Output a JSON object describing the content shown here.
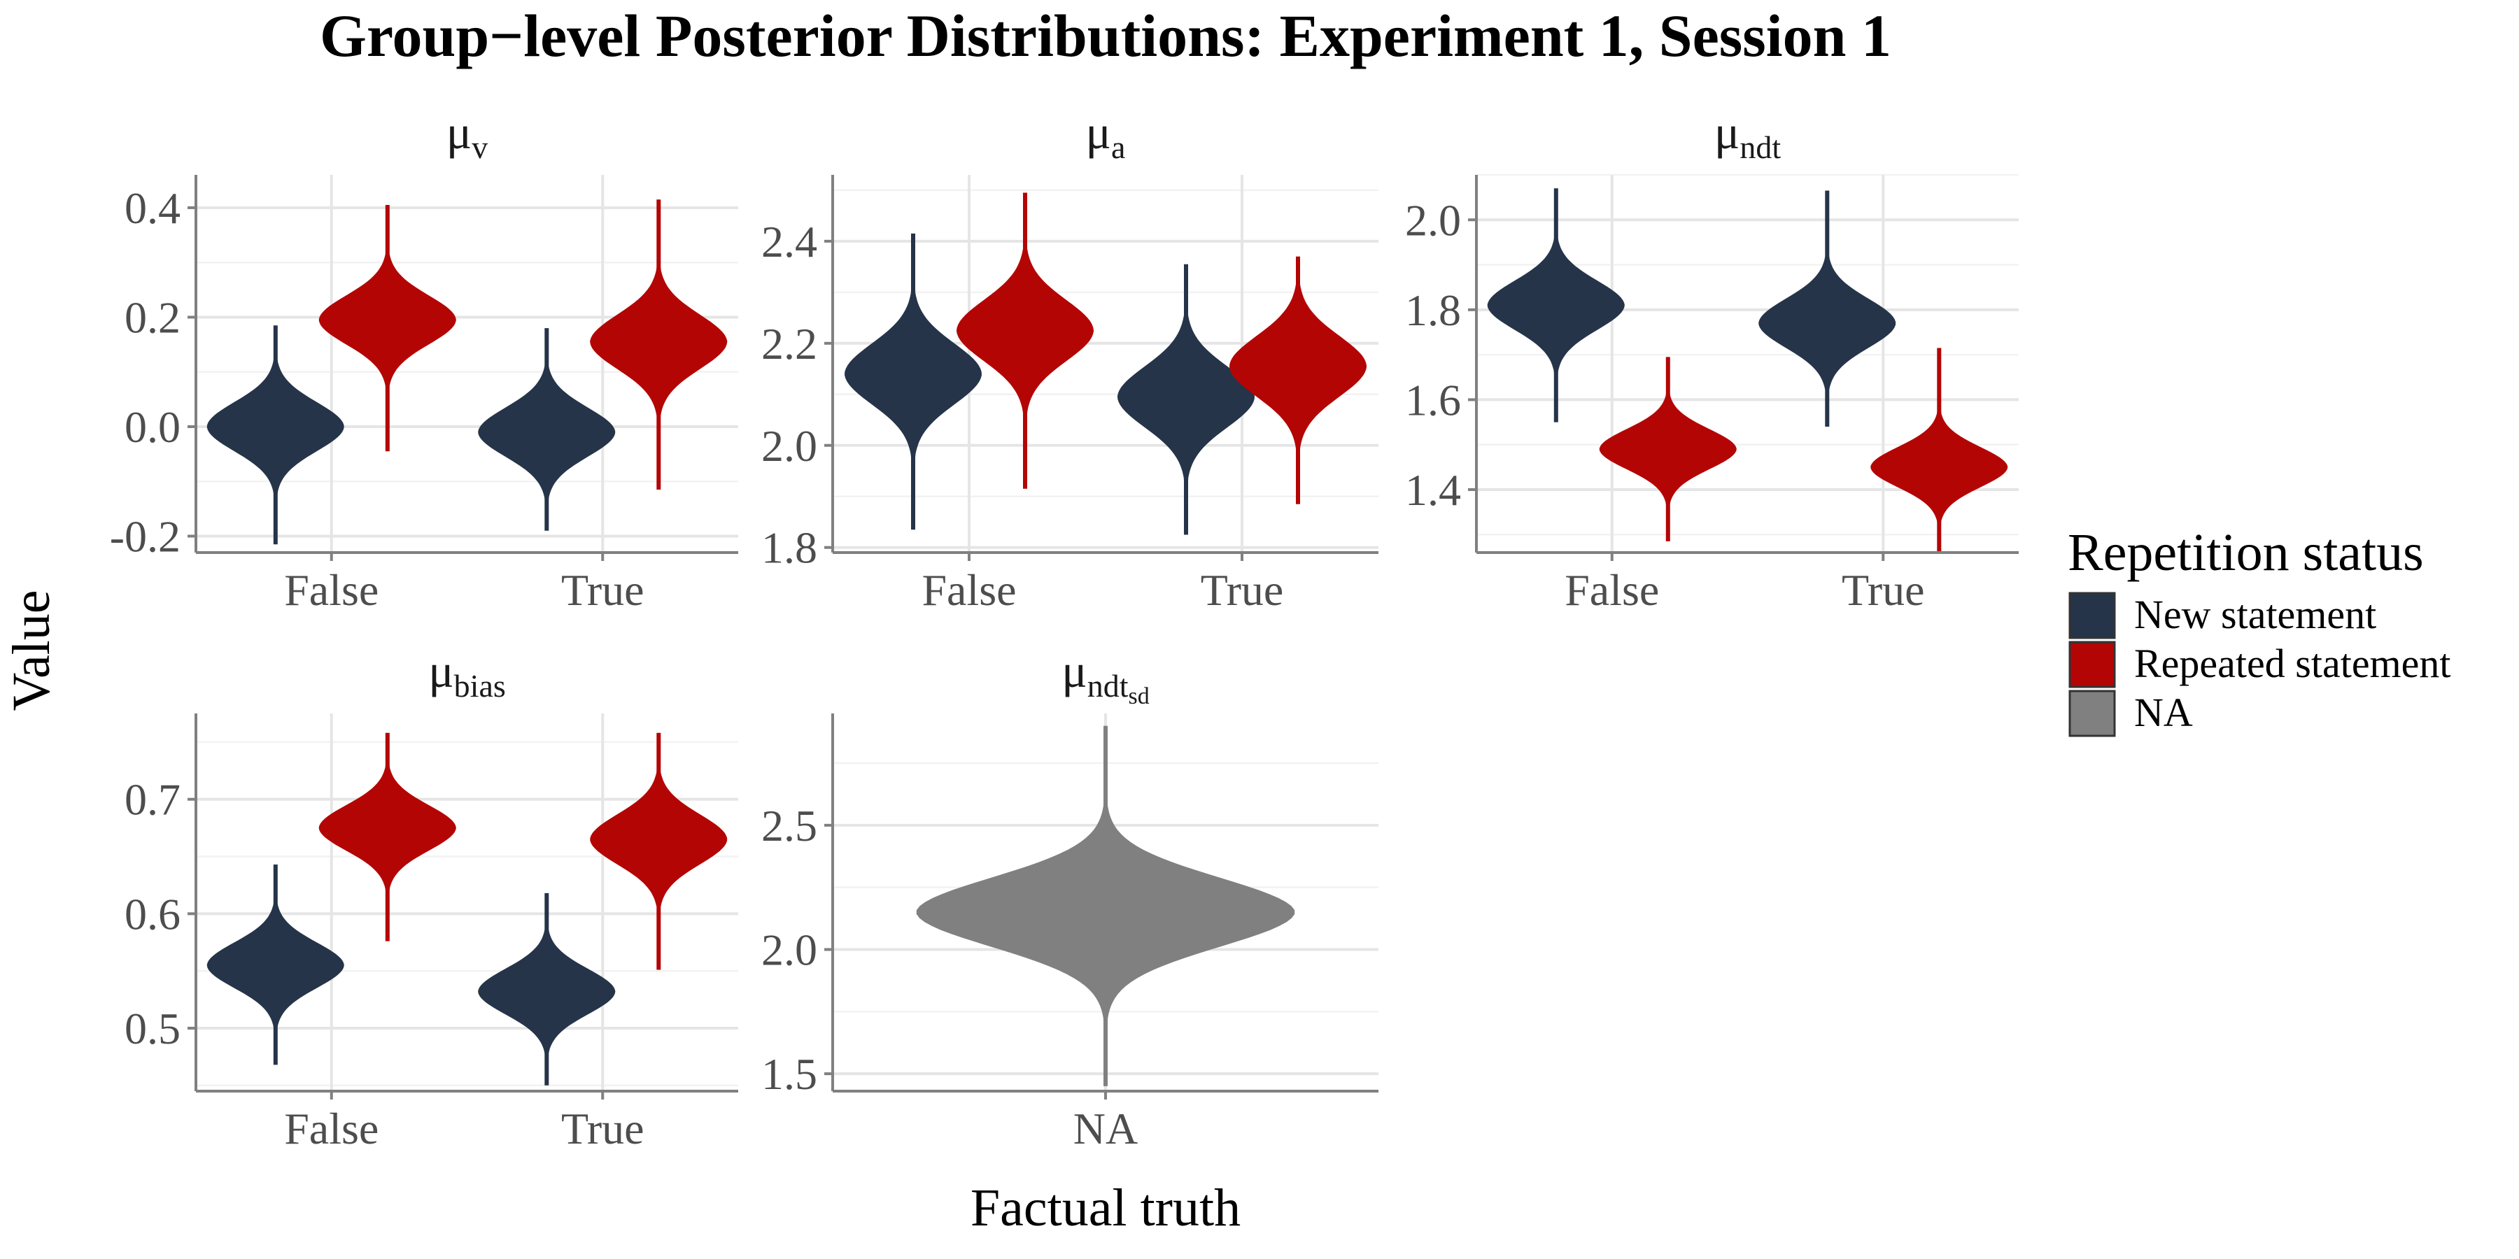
{
  "title": "Group−level Posterior Distributions: Experiment 1, Session 1",
  "y_axis_title": "Value",
  "x_axis_title": "Factual truth",
  "legend": {
    "title": "Repetition status",
    "items": [
      {
        "label": "New statement",
        "color": "#253449"
      },
      {
        "label": "Repeated statement",
        "color": "#b40505"
      },
      {
        "label": "NA",
        "color": "#808080"
      }
    ]
  },
  "chart_data": [
    {
      "type": "violin",
      "facet_label": {
        "base": "μ",
        "sub": "v"
      },
      "categories": [
        "False",
        "True"
      ],
      "ylim": [
        -0.23,
        0.46
      ],
      "yticks": [
        -0.2,
        0.0,
        0.2,
        0.4
      ],
      "ytick_labels": [
        "-0.2",
        "0.0",
        "0.2",
        "0.4"
      ],
      "series": [
        {
          "group": "New statement",
          "violins": [
            {
              "category": "False",
              "center": 0.0,
              "sd": 0.045,
              "min": -0.215,
              "max": 0.185
            },
            {
              "category": "True",
              "center": -0.01,
              "sd": 0.045,
              "min": -0.19,
              "max": 0.18
            }
          ]
        },
        {
          "group": "Repeated statement",
          "violins": [
            {
              "category": "False",
              "center": 0.195,
              "sd": 0.045,
              "min": -0.045,
              "max": 0.405
            },
            {
              "category": "True",
              "center": 0.155,
              "sd": 0.05,
              "min": -0.115,
              "max": 0.415
            }
          ]
        }
      ]
    },
    {
      "type": "violin",
      "facet_label": {
        "base": "μ",
        "sub": "a"
      },
      "categories": [
        "False",
        "True"
      ],
      "ylim": [
        1.79,
        2.53
      ],
      "yticks": [
        1.8,
        2.0,
        2.2,
        2.4
      ],
      "ytick_labels": [
        "1.8",
        "2.0",
        "2.2",
        "2.4"
      ],
      "series": [
        {
          "group": "New statement",
          "violins": [
            {
              "category": "False",
              "center": 2.14,
              "sd": 0.06,
              "min": 1.835,
              "max": 2.415
            },
            {
              "category": "True",
              "center": 2.095,
              "sd": 0.06,
              "min": 1.825,
              "max": 2.355
            }
          ]
        },
        {
          "group": "Repeated statement",
          "violins": [
            {
              "category": "False",
              "center": 2.225,
              "sd": 0.06,
              "min": 1.915,
              "max": 2.495
            },
            {
              "category": "True",
              "center": 2.155,
              "sd": 0.06,
              "min": 1.885,
              "max": 2.37
            }
          ]
        }
      ]
    },
    {
      "type": "violin",
      "facet_label": {
        "base": "μ",
        "sub": "ndt"
      },
      "categories": [
        "False",
        "True"
      ],
      "ylim": [
        1.26,
        2.1
      ],
      "yticks": [
        1.4,
        1.6,
        1.8,
        2.0
      ],
      "ytick_labels": [
        "1.4",
        "1.6",
        "1.8",
        "2.0"
      ],
      "series": [
        {
          "group": "New statement",
          "violins": [
            {
              "category": "False",
              "center": 1.81,
              "sd": 0.055,
              "min": 1.55,
              "max": 2.07
            },
            {
              "category": "True",
              "center": 1.77,
              "sd": 0.055,
              "min": 1.54,
              "max": 2.065
            }
          ]
        },
        {
          "group": "Repeated statement",
          "violins": [
            {
              "category": "False",
              "center": 1.49,
              "sd": 0.045,
              "min": 1.285,
              "max": 1.695
            },
            {
              "category": "True",
              "center": 1.45,
              "sd": 0.045,
              "min": 1.26,
              "max": 1.715
            }
          ]
        }
      ]
    },
    {
      "type": "violin",
      "facet_label": {
        "base": "μ",
        "sub": "bias"
      },
      "categories": [
        "False",
        "True"
      ],
      "ylim": [
        0.445,
        0.775
      ],
      "yticks": [
        0.5,
        0.6,
        0.7
      ],
      "ytick_labels": [
        "0.5",
        "0.6",
        "0.7"
      ],
      "series": [
        {
          "group": "New statement",
          "violins": [
            {
              "category": "False",
              "center": 0.555,
              "sd": 0.02,
              "min": 0.468,
              "max": 0.643
            },
            {
              "category": "True",
              "center": 0.532,
              "sd": 0.02,
              "min": 0.45,
              "max": 0.618
            }
          ]
        },
        {
          "group": "Repeated statement",
          "violins": [
            {
              "category": "False",
              "center": 0.675,
              "sd": 0.02,
              "min": 0.576,
              "max": 0.758
            },
            {
              "category": "True",
              "center": 0.665,
              "sd": 0.022,
              "min": 0.551,
              "max": 0.758
            }
          ]
        }
      ]
    },
    {
      "type": "violin",
      "facet_label": {
        "base": "μ",
        "sub": "ndt",
        "subsub": "sd"
      },
      "categories": [
        "NA"
      ],
      "ylim": [
        1.43,
        2.95
      ],
      "yticks": [
        1.5,
        2.0,
        2.5
      ],
      "ytick_labels": [
        "1.5",
        "2.0",
        "2.5"
      ],
      "series": [
        {
          "group": "NA",
          "violins": [
            {
              "category": "NA",
              "center": 2.15,
              "sd": 0.14,
              "min": 1.45,
              "max": 2.9
            }
          ]
        }
      ]
    }
  ]
}
